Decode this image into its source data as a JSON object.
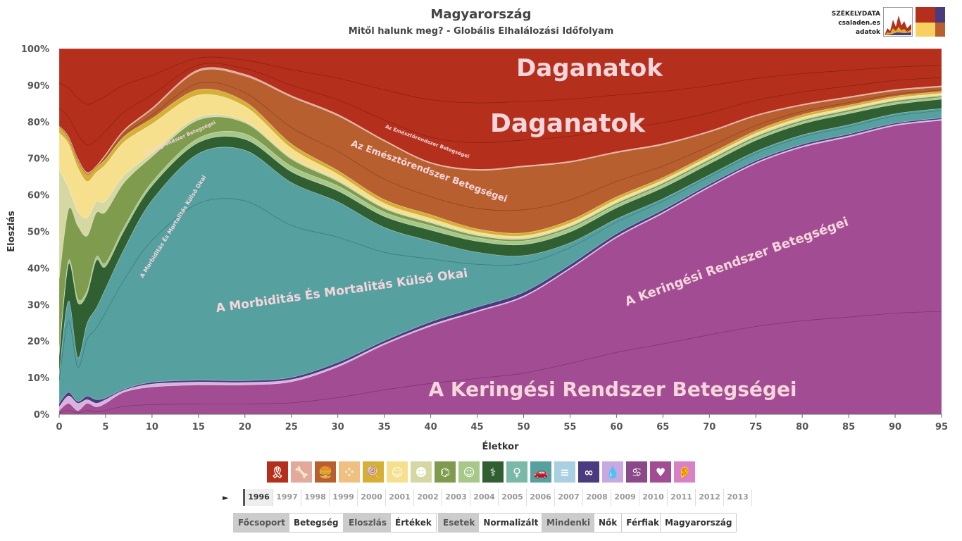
{
  "title": "Magyarország",
  "subtitle": "Mitől halunk meg? - Globális Elhalálozási Időfolyam",
  "brand": {
    "line1": "SZÉKELYDATA",
    "line2": "csaladen.es",
    "line3": "adatok"
  },
  "chart_data": {
    "type": "area",
    "stacked": true,
    "normalized": true,
    "xlabel": "Életkor",
    "ylabel": "Eloszlás",
    "x_ticks": [
      0,
      5,
      10,
      15,
      20,
      25,
      30,
      35,
      40,
      45,
      50,
      55,
      60,
      65,
      70,
      75,
      80,
      85,
      90,
      95
    ],
    "y_ticks": [
      "0%",
      "10%",
      "20%",
      "30%",
      "40%",
      "50%",
      "60%",
      "70%",
      "80%",
      "90%",
      "100%"
    ],
    "xlim": [
      0,
      95
    ],
    "ylim": [
      0,
      100
    ],
    "x": [
      0,
      1,
      2,
      3,
      4,
      5,
      7,
      10,
      15,
      20,
      25,
      30,
      35,
      40,
      45,
      50,
      55,
      60,
      65,
      70,
      75,
      80,
      85,
      90,
      95
    ],
    "series": [
      {
        "key": "keringesi",
        "color": "#a24d93",
        "values": [
          1,
          3,
          1,
          3,
          2,
          3,
          6,
          7.5,
          8,
          8,
          9,
          13,
          19,
          24,
          28,
          32,
          40,
          48,
          55,
          62,
          68,
          72,
          75,
          77.5,
          79
        ]
      },
      {
        "key": "kis1",
        "color": "#d9b3e0",
        "values": [
          1,
          2,
          2,
          1,
          1,
          1,
          0.5,
          0.8,
          0.8,
          0.7,
          0.6,
          0.5,
          0.4,
          0.4,
          0.3,
          0.3,
          0.3,
          0.3,
          0.3,
          0.3,
          0.3,
          0.3,
          0.3,
          0.3,
          0.3
        ]
      },
      {
        "key": "kis2",
        "color": "#4a3a80",
        "values": [
          1,
          1,
          0.5,
          1,
          1,
          0.5,
          0.3,
          0.5,
          0.5,
          0.5,
          0.6,
          0.7,
          0.7,
          0.8,
          1,
          1,
          0.9,
          0.8,
          0.7,
          0.6,
          0.5,
          0.5,
          0.5,
          0.4,
          0.4
        ]
      },
      {
        "key": "kulso",
        "color": "#57a0a0",
        "values": [
          8,
          25,
          12,
          20,
          25,
          30,
          38,
          50,
          62,
          63,
          54,
          44,
          31,
          22,
          15,
          10,
          6,
          4,
          3,
          2.5,
          2.5,
          2.5,
          2.5,
          2.5,
          2.5
        ]
      },
      {
        "key": "sotet",
        "color": "#305f32",
        "values": [
          5,
          10,
          15,
          8,
          13,
          6,
          5,
          4,
          3,
          3,
          3,
          3,
          3,
          3,
          3,
          3,
          3,
          3,
          3,
          3,
          3,
          3,
          3,
          2.5,
          2.5
        ]
      },
      {
        "key": "vzold",
        "color": "#a8c88a",
        "values": [
          1,
          1,
          1,
          1,
          1,
          1,
          1,
          1,
          1.2,
          1.5,
          1.5,
          1.4,
          1.2,
          1.2,
          1,
          1,
          1,
          0.8,
          0.8,
          0.7,
          0.6,
          0.5,
          0.5,
          0.5,
          0.5
        ]
      },
      {
        "key": "zold",
        "color": "#7f9c4e",
        "values": [
          20,
          14,
          20,
          15,
          12,
          14,
          12,
          7,
          5,
          3,
          2,
          1.2,
          1,
          0.8,
          0.6,
          0.5,
          0.5,
          0.5,
          0.5,
          0.5,
          0.5,
          0.5,
          0.5,
          0.5,
          0.4
        ]
      },
      {
        "key": "olajzold",
        "color": "#d5d8a2",
        "values": [
          30,
          6,
          4,
          5,
          3,
          3,
          2,
          1,
          0.8,
          0.5,
          0.5,
          0.5,
          0.4,
          0.4,
          0.4,
          0.4,
          0.4,
          0.4,
          0.4,
          0.4,
          0.4,
          0.4,
          0.3,
          0.3,
          0.3
        ]
      },
      {
        "key": "sarga",
        "color": "#f7e08d",
        "values": [
          10,
          12,
          12,
          10,
          8,
          10,
          9,
          8,
          6,
          4,
          2.5,
          1.5,
          1,
          0.8,
          0.6,
          0.5,
          0.5,
          0.5,
          0.4,
          0.4,
          0.4,
          0.4,
          0.4,
          0.4,
          0.4
        ]
      },
      {
        "key": "arany",
        "color": "#d6b036",
        "values": [
          2,
          1.5,
          2,
          2,
          1.5,
          1.5,
          1.5,
          1.5,
          1.5,
          1.3,
          1.2,
          1,
          1,
          1,
          0.8,
          0.8,
          0.8,
          0.8,
          0.7,
          0.7,
          0.7,
          0.7,
          0.6,
          0.5,
          0.5
        ]
      },
      {
        "key": "emesztorendszer",
        "color": "#b85f30",
        "values": [
          0,
          0,
          0,
          0,
          0,
          1,
          1.5,
          2.5,
          5,
          7,
          13,
          15,
          16,
          14,
          16,
          18,
          16,
          12,
          9,
          6,
          4,
          2.5,
          2,
          1.5,
          1.2
        ]
      },
      {
        "key": "rozsaszin",
        "color": "#e2a99c",
        "values": [
          0,
          0.5,
          0.5,
          0.5,
          0.3,
          0.3,
          0.3,
          0.4,
          0.5,
          0.5,
          0.4,
          0.4,
          0.3,
          0.3,
          0.3,
          0.3,
          0.3,
          0.3,
          0.3,
          0.3,
          0.3,
          0.3,
          0.3,
          0.3,
          0.3
        ]
      },
      {
        "key": "daganatok",
        "color": "#b5301c",
        "values": [
          21,
          24,
          30,
          34,
          32,
          29,
          22,
          16.3,
          5.7,
          7,
          13,
          18,
          25,
          31,
          33,
          32,
          31,
          28,
          26,
          22.5,
          18,
          15,
          13,
          11,
          10
        ]
      }
    ],
    "labels": {
      "daganatok": "Daganatok",
      "emesztorendszer": "Az Emésztőrendszer Betegségei",
      "kulso": "A Morbiditás És Mortalitás Külső Okai",
      "keringesi": "A Keringési Rendszer Betegségei",
      "ideg": "Az Idegrendszer Betegségei"
    }
  },
  "icons": [
    {
      "name": "ribbon-icon",
      "color": "#b5301c",
      "glyph": "🎗"
    },
    {
      "name": "bone-icon",
      "color": "#e2a99c",
      "glyph": "🦴"
    },
    {
      "name": "stomach-icon",
      "color": "#b85f30",
      "glyph": "🍔"
    },
    {
      "name": "pattern-icon",
      "color": "#f0c080",
      "glyph": "⁘"
    },
    {
      "name": "lollipop-icon",
      "color": "#d6b036",
      "glyph": "🍭"
    },
    {
      "name": "head-icon",
      "color": "#f7e08d",
      "glyph": "☺"
    },
    {
      "name": "baby-icon",
      "color": "#d5d8a2",
      "glyph": "☻"
    },
    {
      "name": "dna-icon",
      "color": "#7f9c4e",
      "glyph": "⌬"
    },
    {
      "name": "smile-icon",
      "color": "#a8c88a",
      "glyph": "☺"
    },
    {
      "name": "lungs-icon",
      "color": "#305f32",
      "glyph": "⚕"
    },
    {
      "name": "pregnant-icon",
      "color": "#7ab8a8",
      "glyph": "♀"
    },
    {
      "name": "car-icon",
      "color": "#57a0a0",
      "glyph": "🚗"
    },
    {
      "name": "list-icon",
      "color": "#a8d0e0",
      "glyph": "≡"
    },
    {
      "name": "intestine-icon",
      "color": "#4a3a80",
      "glyph": "∞"
    },
    {
      "name": "drop-icon",
      "color": "#c8a8e0",
      "glyph": "💧"
    },
    {
      "name": "kidney-icon",
      "color": "#8a4a8a",
      "glyph": "♋"
    },
    {
      "name": "heart-icon",
      "color": "#a24d93",
      "glyph": "♥"
    },
    {
      "name": "ear-icon",
      "color": "#d880c8",
      "glyph": "👂"
    }
  ],
  "play_symbol": "►",
  "years": [
    "1996",
    "1997",
    "1998",
    "1999",
    "2000",
    "2001",
    "2002",
    "2003",
    "2004",
    "2005",
    "2006",
    "2007",
    "2008",
    "2009",
    "2010",
    "2011",
    "2012",
    "2013"
  ],
  "selected_year": "1996",
  "controls": [
    {
      "left": "Főcsoport",
      "right": "Betegség"
    },
    {
      "left": "Eloszlás",
      "right": "Értékek"
    },
    {
      "left": "Esetek",
      "right": "Normalizált"
    },
    {
      "left": "Mindenki",
      "mid": "Nők",
      "right": "Férfiak"
    }
  ],
  "country_select": "Magyarország"
}
